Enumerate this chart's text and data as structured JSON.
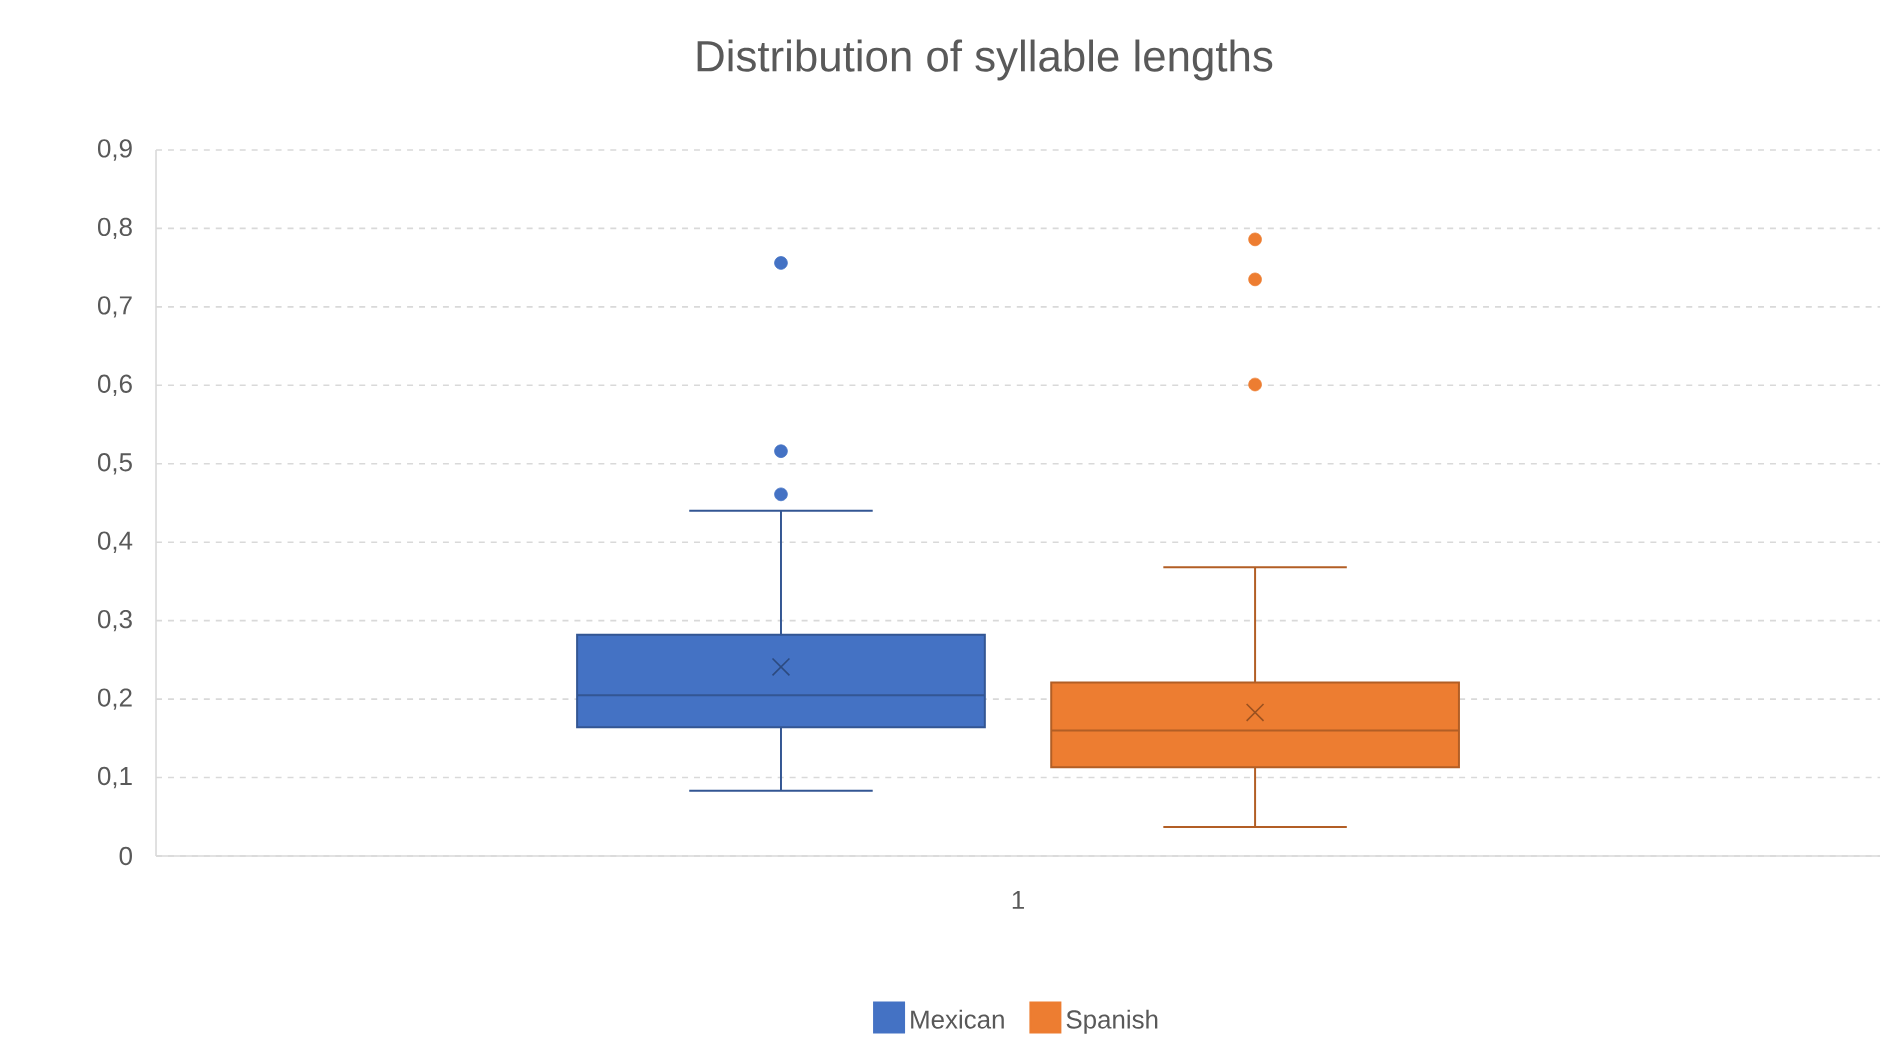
{
  "chart_data": {
    "type": "box",
    "title": "Distribution of syllable lengths",
    "categories": [
      "1"
    ],
    "series": [
      {
        "name": "Mexican",
        "color": "#4472c4",
        "boxes": [
          {
            "low": 0.083,
            "q1": 0.164,
            "median": 0.205,
            "q3": 0.282,
            "high": 0.44,
            "mean": 0.241,
            "outliers": [
              0.461,
              0.516,
              0.756
            ]
          }
        ]
      },
      {
        "name": "Spanish",
        "color": "#ed7d31",
        "boxes": [
          {
            "low": 0.037,
            "q1": 0.113,
            "median": 0.16,
            "q3": 0.221,
            "high": 0.368,
            "mean": 0.183,
            "outliers": [
              0.601,
              0.735,
              0.786
            ]
          }
        ]
      }
    ],
    "ylim": [
      0,
      0.9
    ],
    "yticks": [
      0,
      {
        "value": 0.1,
        "label": "0,1"
      },
      {
        "value": 0.2,
        "label": "0,2"
      },
      {
        "value": 0.3,
        "label": "0,3"
      },
      {
        "value": 0.4,
        "label": "0,4"
      },
      {
        "value": 0.5,
        "label": "0,5"
      },
      {
        "value": 0.6,
        "label": "0,6"
      },
      {
        "value": 0.7,
        "label": "0,7"
      },
      {
        "value": 0.8,
        "label": "0,8"
      },
      {
        "value": 0.9,
        "label": "0,9"
      }
    ],
    "grid": "y",
    "legend": "bottom",
    "marker": "circle"
  }
}
